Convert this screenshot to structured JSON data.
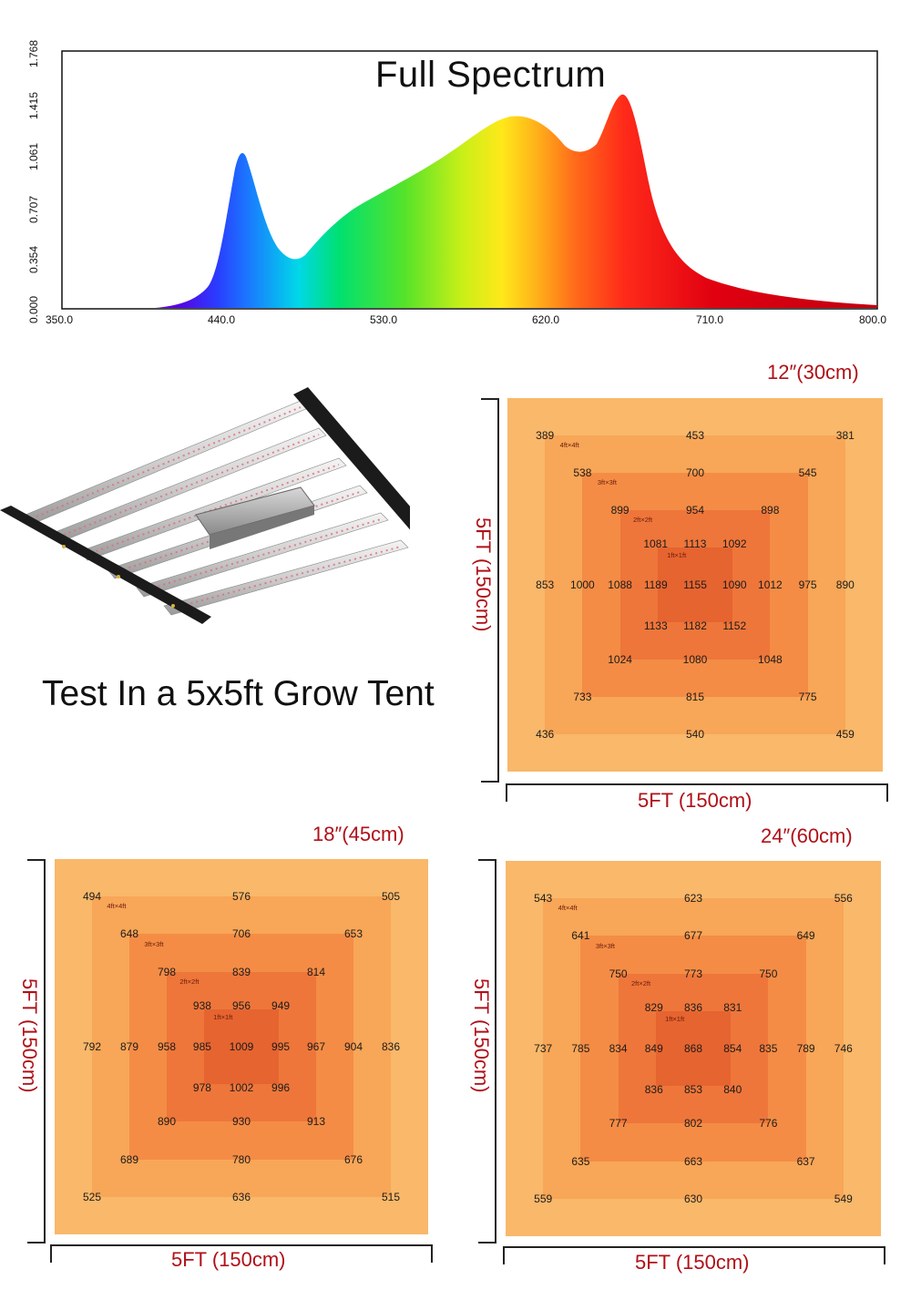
{
  "spectrum": {
    "title": "Full Spectrum",
    "y_ticks": [
      "0.000",
      "0.354",
      "0.707",
      "1.061",
      "1.415",
      "1.768"
    ],
    "x_ticks": [
      "350.0",
      "440.0",
      "530.0",
      "620.0",
      "710.0",
      "800.0"
    ]
  },
  "tent_title": "Test In a 5x5ft Grow Tent",
  "zone_labels": [
    "4ft×4ft",
    "3ft×3ft",
    "2ft×2ft",
    "1ft×1ft"
  ],
  "maps": [
    {
      "height": "12″(30cm)",
      "width_label": "5FT (150cm)",
      "depth_label": "5FT (150cm)",
      "rows": [
        [
          "389",
          "453",
          "381"
        ],
        [
          "538",
          "700",
          "545"
        ],
        [
          "899",
          "954",
          "898"
        ],
        [
          "1081",
          "1113",
          "1092"
        ],
        [
          "853",
          "1000",
          "1088",
          "1189",
          "1155",
          "1090",
          "1012",
          "975",
          "890"
        ],
        [
          "1133",
          "1182",
          "1152"
        ],
        [
          "1024",
          "1080",
          "1048"
        ],
        [
          "733",
          "815",
          "775"
        ],
        [
          "436",
          "540",
          "459"
        ]
      ]
    },
    {
      "height": "18″(45cm)",
      "width_label": "5FT (150cm)",
      "depth_label": "5FT (150cm)",
      "rows": [
        [
          "494",
          "576",
          "505"
        ],
        [
          "648",
          "706",
          "653"
        ],
        [
          "798",
          "839",
          "814"
        ],
        [
          "938",
          "956",
          "949"
        ],
        [
          "792",
          "879",
          "958",
          "985",
          "1009",
          "995",
          "967",
          "904",
          "836"
        ],
        [
          "978",
          "1002",
          "996"
        ],
        [
          "890",
          "930",
          "913"
        ],
        [
          "689",
          "780",
          "676"
        ],
        [
          "525",
          "636",
          "515"
        ]
      ]
    },
    {
      "height": "24″(60cm)",
      "width_label": "5FT (150cm)",
      "depth_label": "5FT (150cm)",
      "rows": [
        [
          "543",
          "623",
          "556"
        ],
        [
          "641",
          "677",
          "649"
        ],
        [
          "750",
          "773",
          "750"
        ],
        [
          "829",
          "836",
          "831"
        ],
        [
          "737",
          "785",
          "834",
          "849",
          "868",
          "854",
          "835",
          "789",
          "746"
        ],
        [
          "836",
          "853",
          "840"
        ],
        [
          "777",
          "802",
          "776"
        ],
        [
          "635",
          "663",
          "637"
        ],
        [
          "559",
          "630",
          "549"
        ]
      ]
    }
  ],
  "colors": {
    "zone_outer": "#f9b86a",
    "zone_4ft": "#f8a657",
    "zone_3ft": "#f48c45",
    "zone_2ft": "#ee763a",
    "zone_1ft": "#e66430",
    "label_red": "#b01018"
  }
}
